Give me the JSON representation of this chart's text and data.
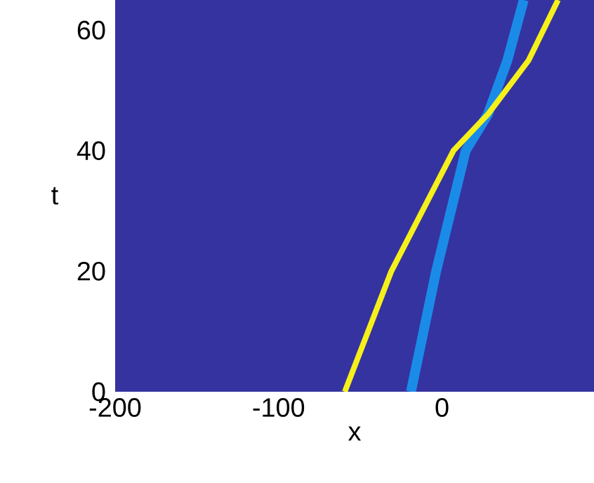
{
  "chart_data": {
    "type": "line",
    "xlabel": "x",
    "ylabel": "t",
    "xlim": [
      -200,
      93
    ],
    "ylim": [
      0,
      65
    ],
    "xticks": [
      -200,
      -100,
      0
    ],
    "yticks": [
      0,
      20,
      40,
      60
    ],
    "series": [
      {
        "color": "#1a8ce8",
        "x": [
          -19,
          -3.6,
          14.5,
          28,
          40,
          50
        ],
        "values": [
          0,
          20,
          40,
          46,
          55,
          65
        ]
      },
      {
        "color": "#f5f01a",
        "x": [
          -59.5,
          -31,
          7,
          28,
          53,
          71
        ],
        "values": [
          0,
          20,
          40,
          46,
          55,
          65
        ]
      }
    ],
    "marker": "none",
    "line_style": "solid"
  }
}
